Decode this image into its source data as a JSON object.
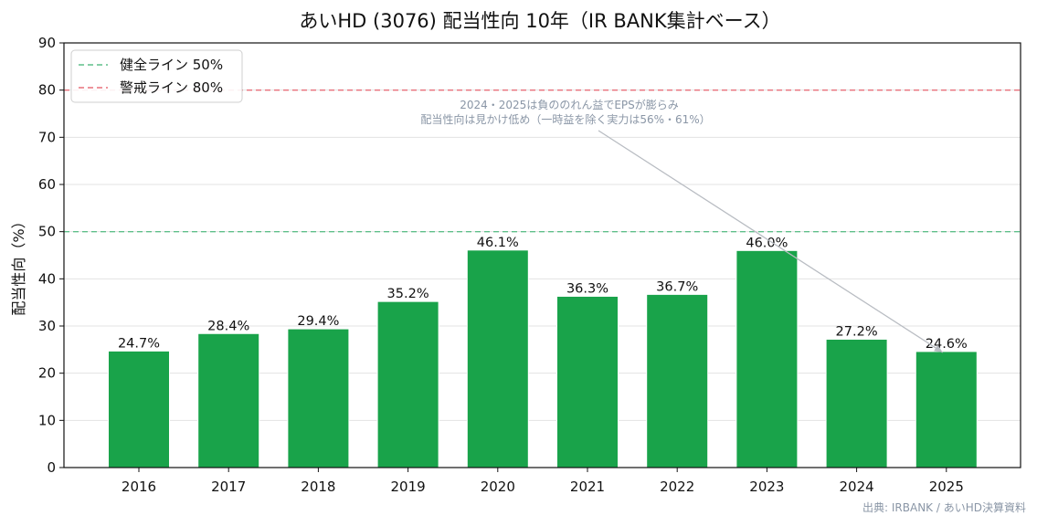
{
  "chart_data": {
    "type": "bar",
    "title": "あいHD (3076) 配当性向 10年（IR BANK集計ベース）",
    "ylabel": "配当性向（%）",
    "xlabel": "",
    "ylim": [
      0,
      90
    ],
    "yticks": [
      0,
      10,
      20,
      30,
      40,
      50,
      60,
      70,
      80,
      90
    ],
    "grid": true,
    "legend_position": "top-left",
    "categories": [
      "2016",
      "2017",
      "2018",
      "2019",
      "2020",
      "2021",
      "2022",
      "2023",
      "2024",
      "2025"
    ],
    "values": [
      24.7,
      28.4,
      29.4,
      35.2,
      46.1,
      36.3,
      36.7,
      46.0,
      27.2,
      24.6
    ],
    "value_labels": [
      "24.7%",
      "28.4%",
      "29.4%",
      "35.2%",
      "46.1%",
      "36.3%",
      "36.7%",
      "46.0%",
      "27.2%",
      "24.6%"
    ],
    "bar_color": "#19a34a",
    "reference_lines": [
      {
        "name": "健全ライン 50%",
        "value": 50,
        "color": "#5fbf8a",
        "style": "dashed"
      },
      {
        "name": "警戒ライン 80%",
        "value": 80,
        "color": "#e8707a",
        "style": "dashed"
      }
    ],
    "annotation": {
      "lines": [
        "2024・2025は負ののれん益でEPSが膨らみ",
        "配当性向は見かけ低め（一時益を除く実力は56%・61%）"
      ],
      "target_category": "2025",
      "target_value": 24.6,
      "color": "#8a96a6"
    },
    "source": "出典: IRBANK / あいHD決算資料"
  }
}
